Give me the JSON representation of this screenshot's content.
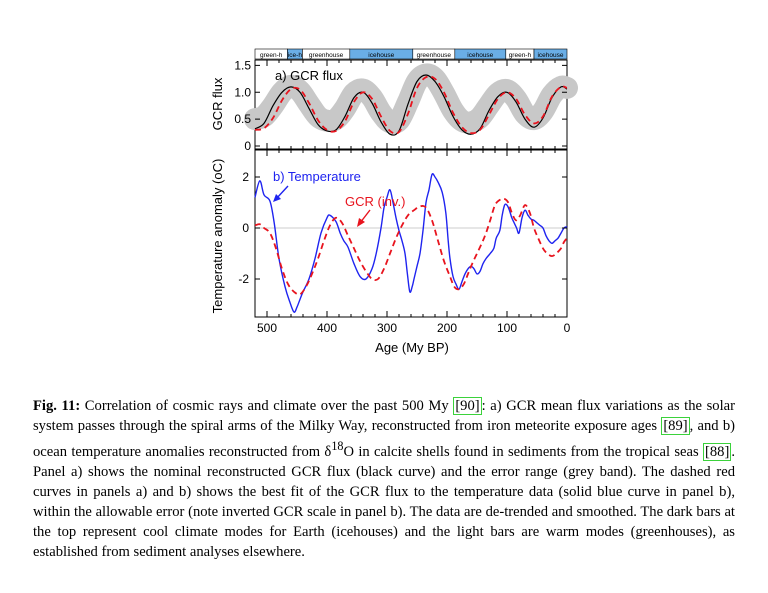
{
  "figure": {
    "climate_modes": [
      {
        "label": "green-h",
        "type": "greenhouse",
        "start": 520,
        "end": 466
      },
      {
        "label": "ice-h",
        "type": "icehouse",
        "start": 466,
        "end": 441
      },
      {
        "label": "greenhouse",
        "type": "greenhouse",
        "start": 441,
        "end": 362
      },
      {
        "label": "icehouse",
        "type": "icehouse",
        "start": 362,
        "end": 257
      },
      {
        "label": "greenhouse",
        "type": "greenhouse",
        "start": 257,
        "end": 187
      },
      {
        "label": "icehouse",
        "type": "icehouse",
        "start": 187,
        "end": 102
      },
      {
        "label": "green-h",
        "type": "greenhouse",
        "start": 102,
        "end": 55
      },
      {
        "label": "icehouse",
        "type": "icehouse",
        "start": 55,
        "end": 0
      }
    ],
    "colors": {
      "greenhouse": "#ffffff",
      "icehouse": "#6aaee6",
      "gcr_nominal": "#000000",
      "gcr_error_band": "#c8c8c8",
      "gcr_fit": "#e8141e",
      "temperature": "#1f24f0"
    }
  },
  "chart_data": [
    {
      "type": "line",
      "panel_label": "a) GCR flux",
      "ylabel": "GCR flux",
      "xlim": [
        520,
        0
      ],
      "ylim": [
        0,
        1.6
      ],
      "yticks": [
        0,
        0.5,
        1.0,
        1.5
      ],
      "ytick_labels": [
        "0",
        "0.5",
        "1.0",
        "1.5"
      ],
      "series": [
        {
          "key": "error_band",
          "x": [
            520,
            505,
            490,
            475,
            460,
            445,
            430,
            415,
            400,
            385,
            370,
            355,
            340,
            325,
            310,
            295,
            280,
            265,
            250,
            235,
            220,
            205,
            190,
            175,
            160,
            145,
            130,
            115,
            100,
            85,
            70,
            55,
            40,
            25,
            10,
            0
          ],
          "y": [
            0.5,
            0.55,
            0.75,
            1.0,
            1.12,
            1.02,
            0.78,
            0.55,
            0.47,
            0.5,
            0.7,
            0.98,
            1.05,
            0.9,
            0.62,
            0.44,
            0.48,
            0.82,
            1.2,
            1.33,
            1.25,
            0.98,
            0.66,
            0.47,
            0.44,
            0.53,
            0.76,
            0.98,
            1.04,
            0.88,
            0.6,
            0.5,
            0.65,
            0.95,
            1.1,
            1.08
          ]
        },
        {
          "key": "nominal",
          "x": [
            520,
            505,
            490,
            475,
            460,
            445,
            430,
            415,
            400,
            385,
            370,
            355,
            340,
            325,
            310,
            295,
            280,
            265,
            250,
            235,
            220,
            205,
            190,
            175,
            160,
            145,
            130,
            115,
            100,
            85,
            70,
            55,
            40,
            25,
            10,
            0
          ],
          "y": [
            0.32,
            0.42,
            0.75,
            1.0,
            1.1,
            1.0,
            0.7,
            0.4,
            0.28,
            0.3,
            0.55,
            0.9,
            1.0,
            0.8,
            0.45,
            0.22,
            0.28,
            0.78,
            1.2,
            1.32,
            1.2,
            0.92,
            0.55,
            0.3,
            0.22,
            0.32,
            0.66,
            0.92,
            1.0,
            0.82,
            0.5,
            0.35,
            0.52,
            0.9,
            1.1,
            1.06
          ]
        },
        {
          "key": "fit",
          "x": [
            520,
            505,
            490,
            475,
            460,
            445,
            430,
            415,
            400,
            385,
            370,
            355,
            340,
            325,
            310,
            295,
            280,
            265,
            250,
            235,
            220,
            205,
            190,
            175,
            160,
            145,
            130,
            115,
            100,
            85,
            70,
            55,
            40,
            25,
            10,
            0
          ],
          "y": [
            0.3,
            0.33,
            0.52,
            0.85,
            1.06,
            1.05,
            0.8,
            0.48,
            0.3,
            0.28,
            0.46,
            0.82,
            1.0,
            0.88,
            0.55,
            0.28,
            0.26,
            0.6,
            1.08,
            1.28,
            1.25,
            1.0,
            0.62,
            0.35,
            0.24,
            0.3,
            0.58,
            0.88,
            1.0,
            0.88,
            0.58,
            0.42,
            0.55,
            0.92,
            1.1,
            1.08
          ]
        }
      ]
    },
    {
      "type": "line",
      "panel_label": "b) Temperature",
      "annotation": "GCR (inv.)",
      "ylabel": "Temperature anomaly (oC)",
      "xlabel": "Age (My BP)",
      "xlim": [
        520,
        0
      ],
      "ylim": [
        -3.7,
        2.4
      ],
      "xticks": [
        500,
        400,
        300,
        200,
        100,
        0
      ],
      "xtick_labels": [
        "500",
        "400",
        "300",
        "200",
        "100",
        "0"
      ],
      "yticks": [
        -2,
        0,
        2
      ],
      "ytick_labels": [
        "-2",
        "0",
        "2"
      ],
      "series": [
        {
          "key": "temperature",
          "x": [
            520,
            512,
            505,
            495,
            488,
            480,
            470,
            462,
            455,
            450,
            445,
            440,
            430,
            420,
            410,
            400,
            395,
            385,
            378,
            372,
            365,
            355,
            345,
            335,
            325,
            318,
            310,
            305,
            300,
            295,
            290,
            285,
            280,
            275,
            270,
            266,
            262,
            258,
            255,
            250,
            245,
            240,
            235,
            230,
            225,
            220,
            215,
            208,
            202,
            198,
            195,
            190,
            185,
            180,
            175,
            170,
            165,
            160,
            155,
            150,
            145,
            140,
            135,
            128,
            122,
            118,
            112,
            108,
            104,
            100,
            96,
            92,
            88,
            84,
            80,
            75,
            70,
            65,
            60,
            55,
            50,
            45,
            40,
            35,
            30,
            25,
            20,
            15,
            10,
            5,
            0
          ],
          "y": [
            1.2,
            1.85,
            1.3,
            1.05,
            0.2,
            -1.2,
            -2.3,
            -2.9,
            -3.3,
            -3.1,
            -2.8,
            -2.5,
            -2.0,
            -1.2,
            -0.2,
            0.4,
            0.5,
            0.25,
            -0.2,
            -0.5,
            -0.75,
            -1.4,
            -1.9,
            -2.0,
            -1.6,
            -1.0,
            0.0,
            0.8,
            1.2,
            1.5,
            1.0,
            0.4,
            -0.1,
            -0.5,
            -1.0,
            -1.8,
            -2.5,
            -2.3,
            -2.0,
            -1.5,
            -1.0,
            -0.1,
            1.0,
            1.5,
            2.1,
            2.0,
            1.8,
            1.4,
            0.6,
            -0.5,
            -1.2,
            -1.9,
            -2.2,
            -2.4,
            -2.1,
            -1.8,
            -1.6,
            -1.5,
            -1.6,
            -1.8,
            -1.7,
            -1.4,
            -1.2,
            -1.0,
            -0.8,
            -0.4,
            -0.1,
            0.5,
            0.9,
            0.9,
            0.7,
            0.4,
            0.2,
            0.0,
            -0.2,
            0.4,
            0.7,
            0.5,
            0.35,
            0.3,
            0.2,
            0.1,
            0.0,
            -0.3,
            -0.5,
            -0.6,
            -0.5,
            -0.4,
            -0.2,
            0.0,
            0.05
          ]
        },
        {
          "key": "gcr_inverted",
          "x": [
            520,
            512,
            505,
            495,
            485,
            475,
            465,
            455,
            445,
            435,
            425,
            415,
            405,
            395,
            385,
            375,
            365,
            355,
            345,
            335,
            325,
            315,
            305,
            295,
            285,
            275,
            265,
            255,
            245,
            235,
            225,
            215,
            205,
            195,
            188,
            180,
            172,
            165,
            158,
            150,
            142,
            135,
            128,
            120,
            112,
            105,
            98,
            92,
            85,
            78,
            70,
            62,
            55,
            48,
            40,
            33,
            25,
            18,
            10,
            5,
            0
          ],
          "y": [
            0.1,
            0.15,
            0.0,
            -0.2,
            -0.8,
            -1.6,
            -2.2,
            -2.5,
            -2.6,
            -2.3,
            -1.8,
            -1.2,
            -0.5,
            0.1,
            0.4,
            0.2,
            -0.3,
            -0.8,
            -1.3,
            -1.7,
            -2.0,
            -2.0,
            -1.6,
            -1.0,
            -0.4,
            0.1,
            0.5,
            0.7,
            0.85,
            0.8,
            0.3,
            -0.5,
            -1.3,
            -1.9,
            -2.3,
            -2.4,
            -2.2,
            -1.8,
            -1.4,
            -1.0,
            -0.6,
            -0.2,
            0.3,
            0.9,
            1.1,
            1.15,
            1.0,
            0.6,
            0.3,
            0.5,
            0.9,
            0.6,
            0.0,
            -0.4,
            -0.8,
            -1.0,
            -1.1,
            -1.0,
            -0.8,
            -0.55,
            -0.4
          ]
        }
      ]
    }
  ],
  "caption": {
    "label": "Fig.  11:",
    "text_1": " Correlation of cosmic rays and climate over the past 500 My ",
    "ref_1": "[90]",
    "text_2": ": a) GCR mean flux variations as the solar system passes through the spiral arms of the Milky Way, reconstructed from iron meteorite exposure ages ",
    "ref_2": "[89]",
    "text_3": ", and b) ocean temperature anomalies reconstructed from δ",
    "superscript": "18",
    "text_4": "O in calcite shells found in sediments from the tropical seas ",
    "ref_3": "[88]",
    "text_5": ". Panel a) shows the nominal reconstructed GCR flux (black curve) and the error range (grey band). The dashed red curves in panels a) and b) shows the best fit of the GCR flux to the temperature data (solid blue curve in panel b), within the allowable error (note inverted GCR scale in panel b). The data are de-trended and smoothed. The dark bars at the top represent cool climate modes for Earth (icehouses) and the light bars are warm modes (greenhouses), as established from sediment analyses elsewhere."
  }
}
